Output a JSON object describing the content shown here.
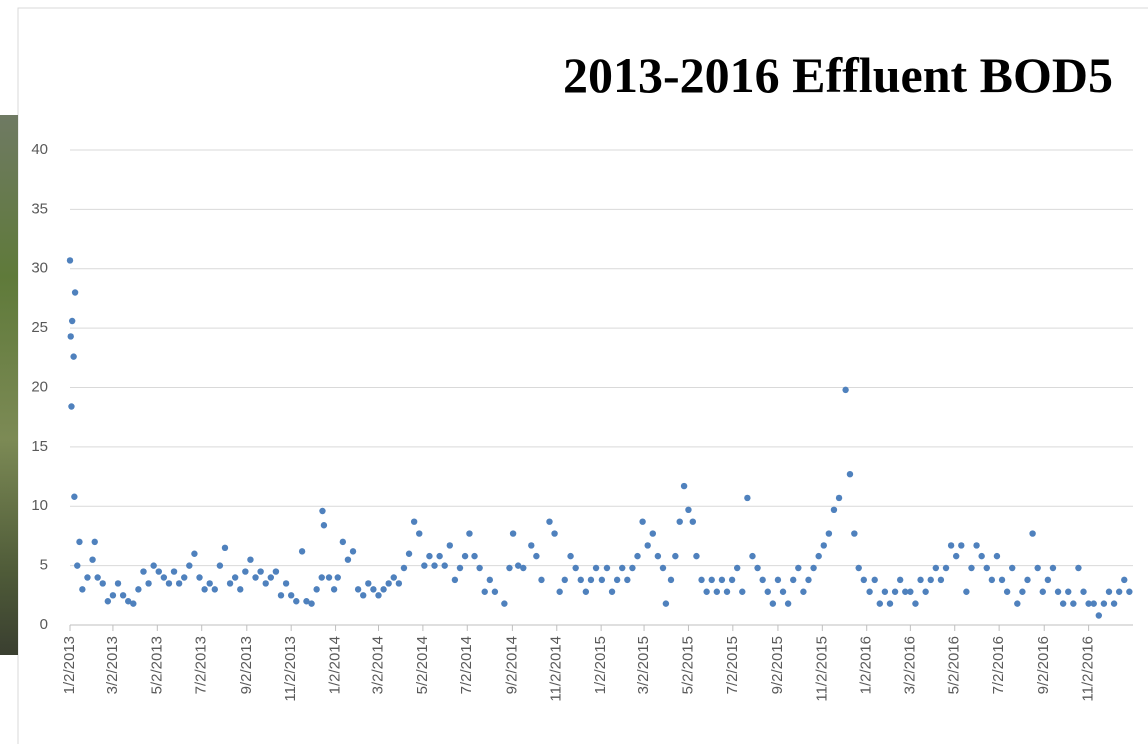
{
  "chart_data": {
    "type": "scatter",
    "title": "2013-2016 Effluent BOD5",
    "color": "#4f81bd",
    "grid": true,
    "x": [
      "2013-01-02",
      "2013-01-03",
      "2013-01-04",
      "2013-01-05",
      "2013-01-07",
      "2013-01-08",
      "2013-01-09",
      "2013-01-12",
      "2013-01-15",
      "2013-01-19",
      "2013-01-26",
      "2013-02-02",
      "2013-02-05",
      "2013-02-09",
      "2013-02-16",
      "2013-02-23",
      "2013-03-02",
      "2013-03-09",
      "2013-03-16",
      "2013-03-23",
      "2013-03-30",
      "2013-04-06",
      "2013-04-13",
      "2013-04-20",
      "2013-04-27",
      "2013-05-04",
      "2013-05-11",
      "2013-05-18",
      "2013-05-25",
      "2013-06-01",
      "2013-06-08",
      "2013-06-15",
      "2013-06-22",
      "2013-06-29",
      "2013-07-06",
      "2013-07-13",
      "2013-07-20",
      "2013-07-27",
      "2013-08-03",
      "2013-08-10",
      "2013-08-17",
      "2013-08-24",
      "2013-08-31",
      "2013-09-07",
      "2013-09-14",
      "2013-09-21",
      "2013-09-28",
      "2013-10-05",
      "2013-10-12",
      "2013-10-19",
      "2013-10-26",
      "2013-11-02",
      "2013-11-09",
      "2013-11-17",
      "2013-11-23",
      "2013-11-30",
      "2013-12-07",
      "2013-12-14",
      "2013-12-15",
      "2013-12-17",
      "2013-12-24",
      "2013-12-31",
      "2014-01-05",
      "2014-01-12",
      "2014-01-19",
      "2014-01-26",
      "2014-02-02",
      "2014-02-09",
      "2014-02-16",
      "2014-02-23",
      "2014-03-02",
      "2014-03-09",
      "2014-03-16",
      "2014-03-23",
      "2014-03-30",
      "2014-04-06",
      "2014-04-13",
      "2014-04-20",
      "2014-04-27",
      "2014-05-04",
      "2014-05-11",
      "2014-05-18",
      "2014-05-25",
      "2014-06-01",
      "2014-06-08",
      "2014-06-15",
      "2014-06-22",
      "2014-06-29",
      "2014-07-05",
      "2014-07-12",
      "2014-07-19",
      "2014-07-26",
      "2014-08-02",
      "2014-08-09",
      "2014-08-22",
      "2014-08-29",
      "2014-09-03",
      "2014-09-10",
      "2014-09-17",
      "2014-09-28",
      "2014-10-05",
      "2014-10-12",
      "2014-10-23",
      "2014-10-30",
      "2014-11-06",
      "2014-11-13",
      "2014-11-21",
      "2014-11-28",
      "2014-12-05",
      "2014-12-12",
      "2014-12-19",
      "2014-12-26",
      "2015-01-03",
      "2015-01-10",
      "2015-01-17",
      "2015-01-24",
      "2015-01-31",
      "2015-02-07",
      "2015-02-14",
      "2015-02-21",
      "2015-02-28",
      "2015-03-07",
      "2015-03-14",
      "2015-03-21",
      "2015-03-28",
      "2015-04-01",
      "2015-04-08",
      "2015-04-14",
      "2015-04-20",
      "2015-04-26",
      "2015-05-02",
      "2015-05-08",
      "2015-05-13",
      "2015-05-20",
      "2015-05-27",
      "2015-06-03",
      "2015-06-10",
      "2015-06-17",
      "2015-06-24",
      "2015-07-01",
      "2015-07-08",
      "2015-07-15",
      "2015-07-22",
      "2015-07-29",
      "2015-08-05",
      "2015-08-12",
      "2015-08-19",
      "2015-08-26",
      "2015-09-02",
      "2015-09-09",
      "2015-09-16",
      "2015-09-23",
      "2015-09-30",
      "2015-10-07",
      "2015-10-14",
      "2015-10-21",
      "2015-10-28",
      "2015-11-04",
      "2015-11-11",
      "2015-11-18",
      "2015-11-25",
      "2015-12-04",
      "2015-12-10",
      "2015-12-16",
      "2015-12-22",
      "2015-12-29",
      "2016-01-06",
      "2016-01-13",
      "2016-01-20",
      "2016-01-27",
      "2016-02-03",
      "2016-02-10",
      "2016-02-17",
      "2016-02-24",
      "2016-03-02",
      "2016-03-09",
      "2016-03-16",
      "2016-03-23",
      "2016-03-30",
      "2016-04-06",
      "2016-04-13",
      "2016-04-20",
      "2016-04-27",
      "2016-05-04",
      "2016-05-11",
      "2016-05-18",
      "2016-05-25",
      "2016-06-01",
      "2016-06-08",
      "2016-06-15",
      "2016-06-22",
      "2016-06-29",
      "2016-07-06",
      "2016-07-13",
      "2016-07-20",
      "2016-07-27",
      "2016-08-03",
      "2016-08-10",
      "2016-08-17",
      "2016-08-24",
      "2016-08-31",
      "2016-09-07",
      "2016-09-14",
      "2016-09-21",
      "2016-09-28",
      "2016-10-05",
      "2016-10-12",
      "2016-10-19",
      "2016-10-26",
      "2016-11-02",
      "2016-11-09",
      "2016-11-16",
      "2016-11-23",
      "2016-11-30",
      "2016-12-07",
      "2016-12-14",
      "2016-12-21",
      "2016-12-28"
    ],
    "values": [
      30.7,
      24.3,
      18.4,
      25.6,
      22.6,
      10.8,
      28,
      5,
      7,
      3,
      4,
      5.5,
      7,
      4,
      3.5,
      2,
      2.5,
      3.5,
      2.5,
      2,
      1.8,
      3,
      4.5,
      3.5,
      5,
      4.5,
      4,
      3.5,
      4.5,
      3.5,
      4,
      5,
      6,
      4,
      3,
      3.5,
      3,
      5,
      6.5,
      3.5,
      4,
      3,
      4.5,
      5.5,
      4,
      4.5,
      3.5,
      4,
      4.5,
      2.5,
      3.5,
      2.5,
      2,
      6.2,
      2,
      1.8,
      3,
      4,
      9.6,
      8.4,
      4,
      3,
      4,
      7,
      5.5,
      6.2,
      3,
      2.5,
      3.5,
      3,
      2.5,
      3,
      3.5,
      4,
      3.5,
      4.8,
      6,
      8.7,
      7.7,
      5,
      5.8,
      5,
      5.8,
      5,
      6.7,
      3.8,
      4.8,
      5.8,
      7.7,
      5.8,
      4.8,
      2.8,
      3.8,
      2.8,
      1.8,
      4.8,
      7.7,
      5,
      4.8,
      6.7,
      5.8,
      3.8,
      8.7,
      7.7,
      2.8,
      3.8,
      5.8,
      4.8,
      3.8,
      2.8,
      3.8,
      4.8,
      3.8,
      4.8,
      2.8,
      3.8,
      4.8,
      3.8,
      4.8,
      5.8,
      8.7,
      6.7,
      7.7,
      5.8,
      4.8,
      1.8,
      3.8,
      5.8,
      8.7,
      11.7,
      9.7,
      8.7,
      5.8,
      3.8,
      2.8,
      3.8,
      2.8,
      3.8,
      2.8,
      3.8,
      4.8,
      2.8,
      10.7,
      5.8,
      4.8,
      3.8,
      2.8,
      1.8,
      3.8,
      2.8,
      1.8,
      3.8,
      4.8,
      2.8,
      3.8,
      4.8,
      5.8,
      6.7,
      7.7,
      9.7,
      10.7,
      19.8,
      12.7,
      7.7,
      4.8,
      3.8,
      2.8,
      3.8,
      1.8,
      2.8,
      1.8,
      2.8,
      3.8,
      2.8,
      2.8,
      1.8,
      3.8,
      2.8,
      3.8,
      4.8,
      3.8,
      4.8,
      6.7,
      5.8,
      6.7,
      2.8,
      4.8,
      6.7,
      5.8,
      4.8,
      3.8,
      5.8,
      3.8,
      2.8,
      4.8,
      1.8,
      2.8,
      3.8,
      7.7,
      4.8,
      2.8,
      3.8,
      4.8,
      2.8,
      1.8,
      2.8,
      1.8,
      4.8,
      2.8,
      1.8,
      1.8,
      0.8,
      1.8,
      2.8,
      1.8,
      2.8,
      3.8,
      2.8
    ],
    "xlim": [
      "2013-01-02",
      "2017-01-02"
    ],
    "xticks": [
      {
        "value": "2013-01-02",
        "label": "1/2/2013"
      },
      {
        "value": "2013-03-02",
        "label": "3/2/2013"
      },
      {
        "value": "2013-05-02",
        "label": "5/2/2013"
      },
      {
        "value": "2013-07-02",
        "label": "7/2/2013"
      },
      {
        "value": "2013-09-02",
        "label": "9/2/2013"
      },
      {
        "value": "2013-11-02",
        "label": "11/2/2013"
      },
      {
        "value": "2014-01-02",
        "label": "1/2/2014"
      },
      {
        "value": "2014-03-02",
        "label": "3/2/2014"
      },
      {
        "value": "2014-05-02",
        "label": "5/2/2014"
      },
      {
        "value": "2014-07-02",
        "label": "7/2/2014"
      },
      {
        "value": "2014-09-02",
        "label": "9/2/2014"
      },
      {
        "value": "2014-11-02",
        "label": "11/2/2014"
      },
      {
        "value": "2015-01-02",
        "label": "1/2/2015"
      },
      {
        "value": "2015-03-02",
        "label": "3/2/2015"
      },
      {
        "value": "2015-05-02",
        "label": "5/2/2015"
      },
      {
        "value": "2015-07-02",
        "label": "7/2/2015"
      },
      {
        "value": "2015-09-02",
        "label": "9/2/2015"
      },
      {
        "value": "2015-11-02",
        "label": "11/2/2015"
      },
      {
        "value": "2016-01-02",
        "label": "1/2/2016"
      },
      {
        "value": "2016-03-02",
        "label": "3/2/2016"
      },
      {
        "value": "2016-05-02",
        "label": "5/2/2016"
      },
      {
        "value": "2016-07-02",
        "label": "7/2/2016"
      },
      {
        "value": "2016-09-02",
        "label": "9/2/2016"
      },
      {
        "value": "2016-11-02",
        "label": "11/2/2016"
      }
    ],
    "ylim": [
      0,
      40
    ],
    "yticks": [
      0,
      5,
      10,
      15,
      20,
      25,
      30,
      35,
      40
    ]
  }
}
